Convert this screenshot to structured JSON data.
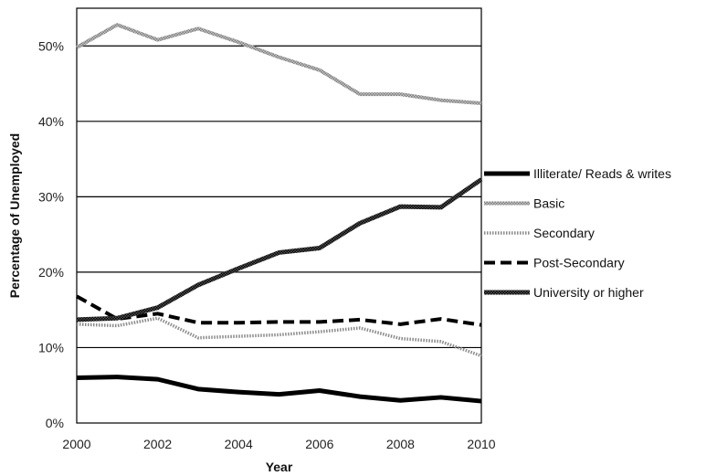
{
  "chart_data": {
    "type": "line",
    "xlabel": "Year",
    "ylabel": "Percentage of Unemployed",
    "xlim": [
      2000,
      2010
    ],
    "ylim": [
      0,
      55
    ],
    "x_ticks": [
      2000,
      2002,
      2004,
      2006,
      2008,
      2010
    ],
    "x_tick_labels": [
      "2000",
      "2002",
      "2004",
      "2006",
      "2008",
      "2010"
    ],
    "y_ticks": [
      0,
      10,
      20,
      30,
      40,
      50
    ],
    "y_tick_labels": [
      "0%",
      "10%",
      "20%",
      "30%",
      "40%",
      "50%"
    ],
    "grid": "horizontal",
    "legend_position": "right",
    "x": [
      2000,
      2001,
      2002,
      2003,
      2004,
      2005,
      2006,
      2007,
      2008,
      2009,
      2010
    ],
    "series": [
      {
        "name": "Illiterate/ Reads & writes",
        "style": "thick-solid",
        "color": "#000000",
        "values": [
          6.0,
          6.1,
          5.8,
          4.5,
          4.1,
          3.8,
          4.3,
          3.5,
          3.0,
          3.4,
          2.9
        ]
      },
      {
        "name": "Basic",
        "style": "gray-textured",
        "color": "#9a9a9a",
        "values": [
          49.8,
          52.8,
          50.8,
          52.3,
          50.5,
          48.5,
          46.8,
          43.6,
          43.6,
          42.8,
          42.4
        ]
      },
      {
        "name": "Secondary",
        "style": "dotted",
        "color": "#8a8a8a",
        "values": [
          13.1,
          12.9,
          13.9,
          11.3,
          11.5,
          11.7,
          12.1,
          12.6,
          11.2,
          10.8,
          8.9
        ]
      },
      {
        "name": "Post-Secondary",
        "style": "dashed",
        "color": "#000000",
        "values": [
          16.8,
          13.8,
          14.5,
          13.3,
          13.3,
          13.4,
          13.4,
          13.7,
          13.1,
          13.8,
          13.0
        ]
      },
      {
        "name": "University or higher",
        "style": "thick-textured",
        "color": "#111111",
        "values": [
          13.7,
          13.9,
          15.3,
          18.3,
          20.5,
          22.6,
          23.2,
          26.5,
          28.7,
          28.6,
          32.3
        ]
      }
    ]
  }
}
